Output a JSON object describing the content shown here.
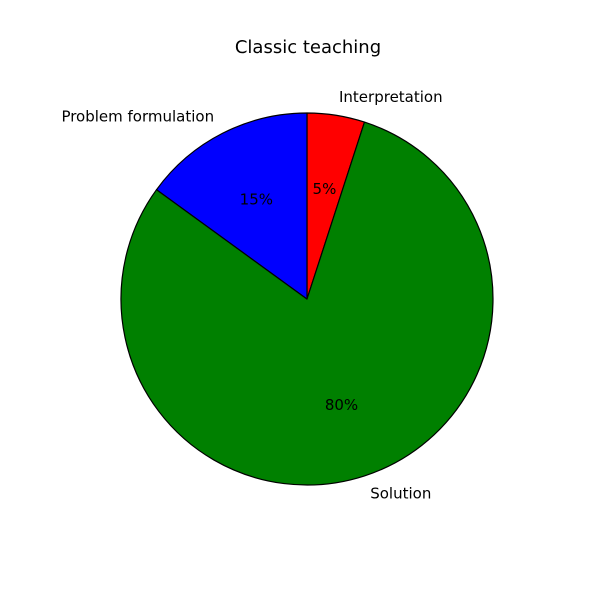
{
  "chart_data": {
    "type": "pie",
    "title": "Classic teaching",
    "start_angle_deg": 90,
    "direction": "clockwise",
    "slices": [
      {
        "label": "Interpretation",
        "value": 5,
        "pct_label": "5%",
        "color": "#ff0000"
      },
      {
        "label": "Solution",
        "value": 80,
        "pct_label": "80%",
        "color": "#008000"
      },
      {
        "label": "Problem formulation",
        "value": 15,
        "pct_label": "15%",
        "color": "#0000ff"
      }
    ]
  }
}
